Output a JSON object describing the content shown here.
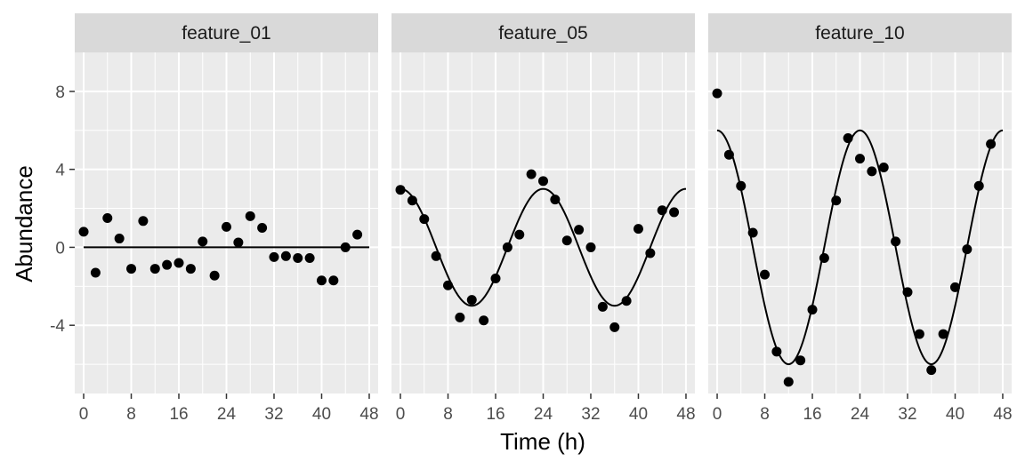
{
  "chart_data": {
    "type": "scatter",
    "xlabel": "Time (h)",
    "ylabel": "Abundance",
    "x_ticks": [
      0,
      8,
      16,
      24,
      32,
      40,
      48
    ],
    "y_ticks": [
      -4,
      0,
      4,
      8
    ],
    "xlim": [
      -1.5,
      49.5
    ],
    "ylim": [
      -7.5,
      10.0
    ],
    "grid": true,
    "colors": {
      "panel_bg": "#ebebeb",
      "strip_bg": "#d9d9d9",
      "grid": "#ffffff",
      "points": "#000000",
      "line": "#000000"
    },
    "panels": [
      {
        "name": "feature_01",
        "fit": {
          "type": "constant",
          "value": 0
        },
        "x": [
          0,
          2,
          4,
          6,
          8,
          10,
          12,
          14,
          16,
          18,
          20,
          22,
          24,
          26,
          28,
          30,
          32,
          34,
          36,
          38,
          40,
          42,
          44,
          46
        ],
        "y": [
          0.8,
          -1.3,
          1.5,
          0.45,
          -1.1,
          1.35,
          -1.1,
          -0.9,
          -0.8,
          -1.1,
          0.3,
          -1.45,
          1.05,
          0.25,
          1.6,
          1.0,
          -0.5,
          -0.45,
          -0.55,
          -0.55,
          -1.7,
          -1.7,
          0.0,
          0.65
        ]
      },
      {
        "name": "feature_05",
        "fit": {
          "type": "cosine",
          "amplitude": 3,
          "period": 24,
          "phase": 0
        },
        "x": [
          0,
          2,
          4,
          6,
          8,
          10,
          12,
          14,
          16,
          18,
          20,
          22,
          24,
          26,
          28,
          30,
          32,
          34,
          36,
          38,
          40,
          42,
          44,
          46
        ],
        "y": [
          2.95,
          2.4,
          1.45,
          -0.45,
          -1.95,
          -3.6,
          -2.7,
          -3.75,
          -1.6,
          0.0,
          0.65,
          3.75,
          3.4,
          2.45,
          0.35,
          0.9,
          0.0,
          -3.05,
          -4.1,
          -2.75,
          0.95,
          -0.3,
          1.9,
          1.8
        ]
      },
      {
        "name": "feature_10",
        "fit": {
          "type": "cosine",
          "amplitude": 6,
          "period": 24,
          "phase": 0
        },
        "x": [
          0,
          2,
          4,
          6,
          8,
          10,
          12,
          14,
          16,
          18,
          20,
          22,
          24,
          26,
          28,
          30,
          32,
          34,
          36,
          38,
          40,
          42,
          44,
          46
        ],
        "y": [
          7.9,
          4.75,
          3.15,
          0.75,
          -1.4,
          -5.35,
          -6.9,
          -5.8,
          -3.2,
          -0.55,
          2.4,
          5.6,
          4.55,
          3.9,
          4.1,
          0.3,
          -2.3,
          -4.45,
          -6.3,
          -4.45,
          -2.05,
          -0.1,
          3.15,
          5.3
        ]
      }
    ]
  }
}
